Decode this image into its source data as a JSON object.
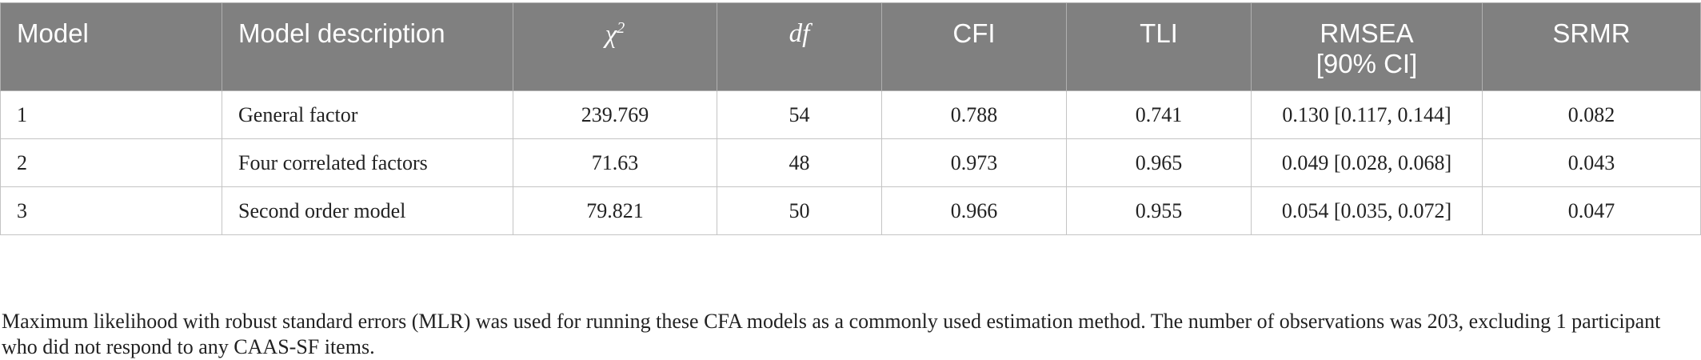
{
  "table": {
    "headers": {
      "model": "Model",
      "description": "Model description",
      "chi_base": "χ",
      "chi_sup": "2",
      "df": "df",
      "cfi": "CFI",
      "tli": "TLI",
      "rmsea_line1": "RMSEA",
      "rmsea_line2": "[90% CI]",
      "srmr": "SRMR"
    },
    "rows": [
      {
        "model": "1",
        "description": "General factor",
        "chi2": "239.769",
        "df": "54",
        "cfi": "0.788",
        "tli": "0.741",
        "rmsea": "0.130 [0.117, 0.144]",
        "srmr": "0.082"
      },
      {
        "model": "2",
        "description": "Four correlated factors",
        "chi2": "71.63",
        "df": "48",
        "cfi": "0.973",
        "tli": "0.965",
        "rmsea": "0.049 [0.028, 0.068]",
        "srmr": "0.043"
      },
      {
        "model": "3",
        "description": "Second order model",
        "chi2": "79.821",
        "df": "50",
        "cfi": "0.966",
        "tli": "0.955",
        "rmsea": "0.054 [0.035, 0.072]",
        "srmr": "0.047"
      }
    ]
  },
  "note": "Maximum likelihood with robust standard errors (MLR) was used for running these CFA models as a commonly used estimation method. The number of observations was 203, excluding 1 participant who did not respond to any CAAS-SF items.",
  "colors": {
    "header_bg": "#808080",
    "header_text": "#ffffff",
    "border": "#c4c4c4",
    "body_text": "#222222"
  }
}
